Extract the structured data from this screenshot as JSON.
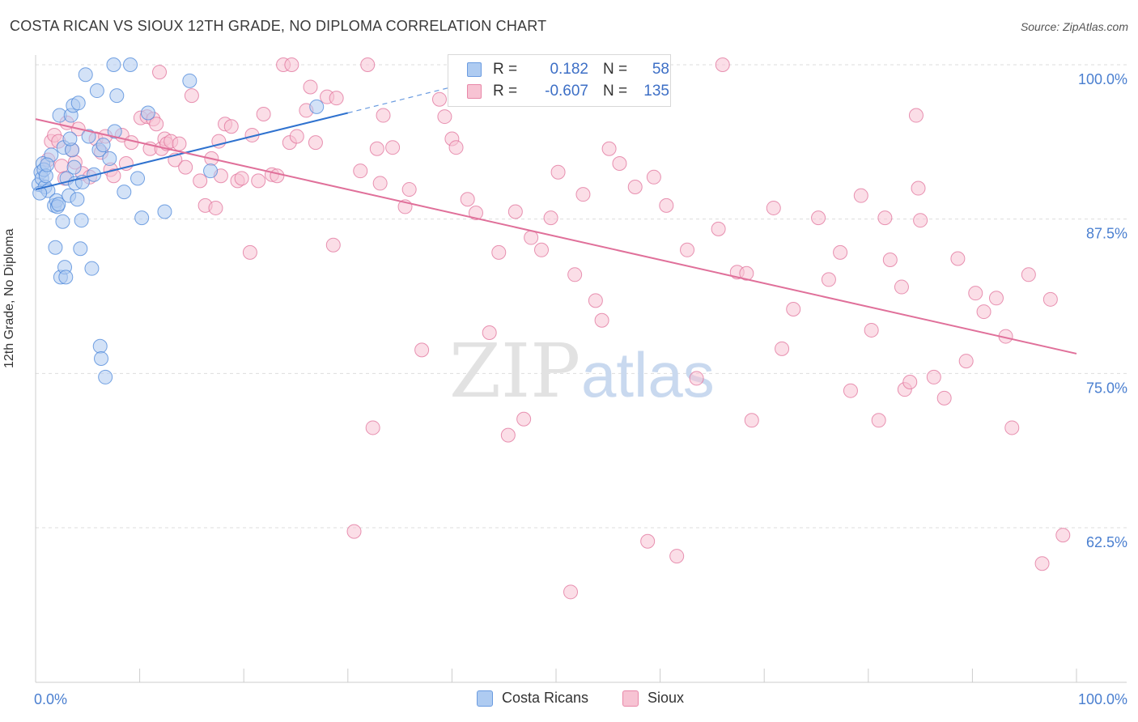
{
  "title": "COSTA RICAN VS SIOUX 12TH GRADE, NO DIPLOMA CORRELATION CHART",
  "source": "Source: ZipAtlas.com",
  "watermark": {
    "zip": "ZIP",
    "atlas": "atlas"
  },
  "legend": {
    "r_label": "R =",
    "n_label": "N =",
    "rows": [
      {
        "r": "0.182",
        "n": "58",
        "color": "#6a9be0",
        "fill": "#aecbf1"
      },
      {
        "r": "-0.607",
        "n": "135",
        "color": "#e887a8",
        "fill": "#f7c3d3"
      }
    ]
  },
  "bottom_legend": [
    {
      "label": "Costa Ricans",
      "color": "#6a9be0",
      "fill": "#aecbf1"
    },
    {
      "label": "Sioux",
      "color": "#e887a8",
      "fill": "#f7c3d3"
    }
  ],
  "chart_data": {
    "type": "scatter",
    "title": "COSTA RICAN VS SIOUX 12TH GRADE, NO DIPLOMA CORRELATION CHART",
    "xlabel": "",
    "ylabel": "12th Grade, No Diploma",
    "xlim": [
      0,
      100
    ],
    "ylim": [
      50,
      102
    ],
    "x_tick_labels": [
      "0.0%",
      "100.0%"
    ],
    "y_ticks": [
      {
        "value": 100,
        "label": "100.0%"
      },
      {
        "value": 87.5,
        "label": "87.5%"
      },
      {
        "value": 75,
        "label": "75.0%"
      },
      {
        "value": 62.5,
        "label": "62.5%"
      }
    ],
    "series": [
      {
        "name": "Costa Ricans",
        "color": "#4a86d9",
        "fill": "#aecbf1",
        "trend": {
          "x0": 0,
          "y0": 89.9,
          "x1": 30,
          "y1": 96.1,
          "dash_to_x": 40,
          "dash_to_y": 98.2
        },
        "points": [
          [
            0.3,
            90.3
          ],
          [
            0.5,
            91.3
          ],
          [
            0.6,
            90.8
          ],
          [
            0.7,
            92.0
          ],
          [
            0.8,
            91.5
          ],
          [
            0.9,
            90.1
          ],
          [
            1.0,
            91.0
          ],
          [
            1.2,
            89.8
          ],
          [
            1.5,
            92.7
          ],
          [
            1.8,
            88.6
          ],
          [
            1.9,
            85.2
          ],
          [
            2.0,
            89.0
          ],
          [
            2.1,
            88.5
          ],
          [
            2.3,
            95.9
          ],
          [
            2.4,
            82.8
          ],
          [
            2.6,
            87.3
          ],
          [
            2.7,
            93.3
          ],
          [
            2.8,
            83.6
          ],
          [
            2.9,
            82.8
          ],
          [
            3.0,
            90.8
          ],
          [
            3.2,
            89.4
          ],
          [
            3.4,
            95.9
          ],
          [
            3.5,
            93.1
          ],
          [
            3.6,
            96.7
          ],
          [
            3.7,
            91.7
          ],
          [
            3.8,
            90.4
          ],
          [
            4.0,
            89.1
          ],
          [
            4.1,
            96.9
          ],
          [
            4.3,
            85.1
          ],
          [
            4.4,
            87.4
          ],
          [
            4.5,
            90.5
          ],
          [
            4.8,
            99.2
          ],
          [
            5.1,
            94.2
          ],
          [
            5.4,
            83.5
          ],
          [
            5.6,
            91.1
          ],
          [
            5.9,
            97.9
          ],
          [
            6.1,
            93.1
          ],
          [
            6.2,
            77.2
          ],
          [
            6.3,
            76.2
          ],
          [
            6.5,
            93.5
          ],
          [
            6.7,
            74.7
          ],
          [
            7.1,
            92.4
          ],
          [
            7.5,
            100.0
          ],
          [
            7.6,
            94.6
          ],
          [
            7.8,
            97.5
          ],
          [
            8.5,
            89.7
          ],
          [
            9.1,
            100.0
          ],
          [
            9.8,
            90.8
          ],
          [
            10.2,
            87.6
          ],
          [
            10.8,
            96.1
          ],
          [
            12.4,
            88.1
          ],
          [
            14.8,
            98.7
          ],
          [
            16.8,
            91.4
          ],
          [
            27.0,
            96.6
          ],
          [
            0.4,
            89.6
          ],
          [
            1.1,
            91.9
          ],
          [
            2.2,
            88.7
          ],
          [
            3.3,
            94.0
          ]
        ]
      },
      {
        "name": "Sioux",
        "color": "#e0709a",
        "fill": "#f7c3d3",
        "trend": {
          "x0": 0,
          "y0": 95.6,
          "x1": 100,
          "y1": 76.6
        },
        "points": [
          [
            1.2,
            92.3
          ],
          [
            1.5,
            93.8
          ],
          [
            1.8,
            94.3
          ],
          [
            2.2,
            93.8
          ],
          [
            2.5,
            91.8
          ],
          [
            2.8,
            90.8
          ],
          [
            3.5,
            93.1
          ],
          [
            3.8,
            92.1
          ],
          [
            4.1,
            94.8
          ],
          [
            4.5,
            91.2
          ],
          [
            5.2,
            90.9
          ],
          [
            5.8,
            94.0
          ],
          [
            6.3,
            92.9
          ],
          [
            6.7,
            94.2
          ],
          [
            7.2,
            91.5
          ],
          [
            7.5,
            91.0
          ],
          [
            8.3,
            94.3
          ],
          [
            8.7,
            92.0
          ],
          [
            9.2,
            93.7
          ],
          [
            10.1,
            95.7
          ],
          [
            10.7,
            95.8
          ],
          [
            11.0,
            93.2
          ],
          [
            11.3,
            95.6
          ],
          [
            11.6,
            95.2
          ],
          [
            11.9,
            99.4
          ],
          [
            12.1,
            93.2
          ],
          [
            12.4,
            94.0
          ],
          [
            12.6,
            93.6
          ],
          [
            13.0,
            93.8
          ],
          [
            13.4,
            92.3
          ],
          [
            13.8,
            93.6
          ],
          [
            14.4,
            91.7
          ],
          [
            15.0,
            97.5
          ],
          [
            15.8,
            90.6
          ],
          [
            16.3,
            88.6
          ],
          [
            16.9,
            92.4
          ],
          [
            17.3,
            88.4
          ],
          [
            17.8,
            91.0
          ],
          [
            18.2,
            95.2
          ],
          [
            18.8,
            95.0
          ],
          [
            19.4,
            90.6
          ],
          [
            19.8,
            90.8
          ],
          [
            20.6,
            84.8
          ],
          [
            20.8,
            94.3
          ],
          [
            21.4,
            90.6
          ],
          [
            21.9,
            96.0
          ],
          [
            22.7,
            91.1
          ],
          [
            23.2,
            91.0
          ],
          [
            23.8,
            100.0
          ],
          [
            24.4,
            93.7
          ],
          [
            25.1,
            94.2
          ],
          [
            26.0,
            96.3
          ],
          [
            26.4,
            98.2
          ],
          [
            26.9,
            93.7
          ],
          [
            28.0,
            97.4
          ],
          [
            28.6,
            85.4
          ],
          [
            28.9,
            97.3
          ],
          [
            30.6,
            62.2
          ],
          [
            31.2,
            91.4
          ],
          [
            31.9,
            100.0
          ],
          [
            32.4,
            70.6
          ],
          [
            32.8,
            93.2
          ],
          [
            33.4,
            95.9
          ],
          [
            34.3,
            93.3
          ],
          [
            35.5,
            88.5
          ],
          [
            35.9,
            89.9
          ],
          [
            37.1,
            76.9
          ],
          [
            38.8,
            97.2
          ],
          [
            39.3,
            95.8
          ],
          [
            40.0,
            94.0
          ],
          [
            40.4,
            93.3
          ],
          [
            41.5,
            89.1
          ],
          [
            42.3,
            88.0
          ],
          [
            43.6,
            78.3
          ],
          [
            44.5,
            84.8
          ],
          [
            45.4,
            70.0
          ],
          [
            46.1,
            88.1
          ],
          [
            46.9,
            71.3
          ],
          [
            47.6,
            86.0
          ],
          [
            48.6,
            85.0
          ],
          [
            49.5,
            87.6
          ],
          [
            50.2,
            91.3
          ],
          [
            51.4,
            57.3
          ],
          [
            51.8,
            83.0
          ],
          [
            52.6,
            89.5
          ],
          [
            53.8,
            80.9
          ],
          [
            54.4,
            79.3
          ],
          [
            55.1,
            93.2
          ],
          [
            56.1,
            92.0
          ],
          [
            57.6,
            90.1
          ],
          [
            58.8,
            61.4
          ],
          [
            59.4,
            90.9
          ],
          [
            60.6,
            88.6
          ],
          [
            61.6,
            60.2
          ],
          [
            62.6,
            85.0
          ],
          [
            63.5,
            74.6
          ],
          [
            65.6,
            86.7
          ],
          [
            67.4,
            83.2
          ],
          [
            68.3,
            83.1
          ],
          [
            68.8,
            71.2
          ],
          [
            70.9,
            88.4
          ],
          [
            71.7,
            77.0
          ],
          [
            72.8,
            80.2
          ],
          [
            75.2,
            87.6
          ],
          [
            76.2,
            82.6
          ],
          [
            77.3,
            84.8
          ],
          [
            78.3,
            73.6
          ],
          [
            79.3,
            89.4
          ],
          [
            80.3,
            78.5
          ],
          [
            81.0,
            71.2
          ],
          [
            81.6,
            87.6
          ],
          [
            82.1,
            84.2
          ],
          [
            83.2,
            82.0
          ],
          [
            83.5,
            73.7
          ],
          [
            84.0,
            74.3
          ],
          [
            84.8,
            90.0
          ],
          [
            85.0,
            87.4
          ],
          [
            86.3,
            74.7
          ],
          [
            87.3,
            73.0
          ],
          [
            88.6,
            84.3
          ],
          [
            89.4,
            76.0
          ],
          [
            90.3,
            81.5
          ],
          [
            91.1,
            80.0
          ],
          [
            92.3,
            81.1
          ],
          [
            93.2,
            78.0
          ],
          [
            93.8,
            70.6
          ],
          [
            95.4,
            83.0
          ],
          [
            96.7,
            59.6
          ],
          [
            97.5,
            81.0
          ],
          [
            98.7,
            61.9
          ],
          [
            3.0,
            95.3
          ],
          [
            17.6,
            93.8
          ],
          [
            24.6,
            100.0
          ],
          [
            33.1,
            90.4
          ],
          [
            84.6,
            95.9
          ],
          [
            66.0,
            100.0
          ]
        ]
      }
    ]
  }
}
